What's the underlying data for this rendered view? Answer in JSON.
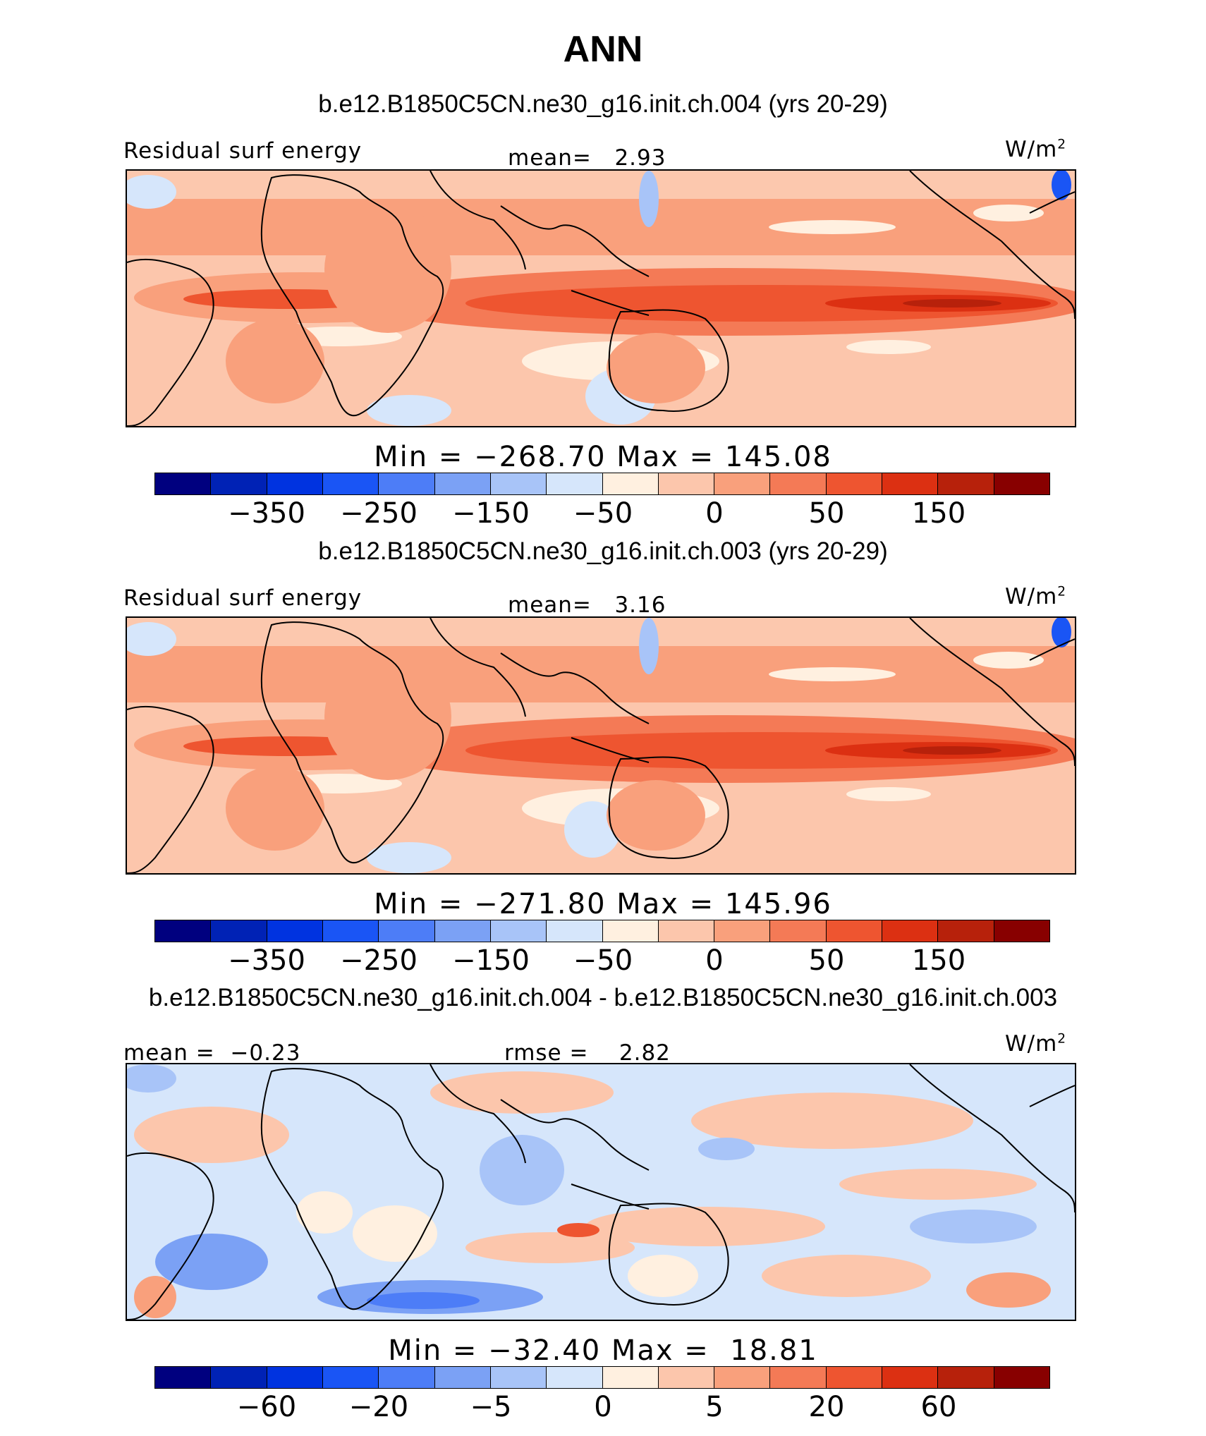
{
  "title": "ANN",
  "units_base": "W/m",
  "units_exp": "2",
  "colors": [
    "#00007f",
    "#0022b5",
    "#0033e0",
    "#1a55f5",
    "#4d7df7",
    "#7ba1f5",
    "#a8c4f8",
    "#d6e6fb",
    "#fff0e0",
    "#fcc6ac",
    "#f9a07c",
    "#f47a56",
    "#ee5530",
    "#dc3012",
    "#b7210b",
    "#880000"
  ],
  "panels": [
    {
      "case_title": "b.e12.B1850C5CN.ne30_g16.init.ch.004 (yrs 20-29)",
      "left_label": "Residual surf energy",
      "center_label": "mean=   2.93",
      "min_max": "Min = −268.70 Max = 145.08",
      "ticks": [
        "−350",
        "−250",
        "−150",
        "−50",
        "0",
        "50",
        "150"
      ]
    },
    {
      "case_title": "b.e12.B1850C5CN.ne30_g16.init.ch.003 (yrs 20-29)",
      "left_label": "Residual surf energy",
      "center_label": "mean=   3.16",
      "min_max": "Min = −271.80 Max = 145.96",
      "ticks": [
        "−350",
        "−250",
        "−150",
        "−50",
        "0",
        "50",
        "150"
      ]
    },
    {
      "case_title": "b.e12.B1850C5CN.ne30_g16.init.ch.004 - b.e12.B1850C5CN.ne30_g16.init.ch.003",
      "left_label": "mean =  −0.23",
      "center_label": "rmse =    2.82",
      "min_max": "Min = −32.40 Max =  18.81",
      "ticks": [
        "−60",
        "−20",
        "−5",
        "0",
        "5",
        "20",
        "60"
      ]
    }
  ]
}
